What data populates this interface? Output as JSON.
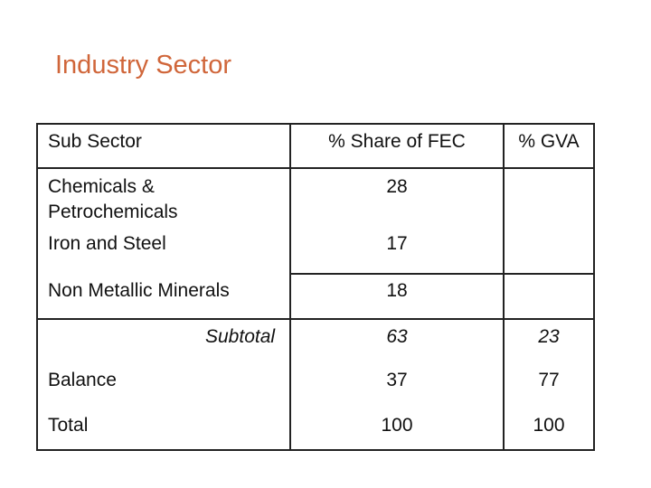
{
  "title": "Industry Sector",
  "table": {
    "headers": {
      "sub_sector": "Sub Sector",
      "share_fec": "% Share of FEC",
      "gva": "% GVA"
    },
    "rows": [
      {
        "label": "Chemicals &",
        "label2": "Petrochemicals",
        "fec": "28",
        "gva": ""
      },
      {
        "label": "Iron and Steel",
        "fec": "17",
        "gva": ""
      },
      {
        "label": "Non Metallic Minerals",
        "fec": "18",
        "gva": ""
      },
      {
        "label": "Subtotal",
        "fec": "63",
        "gva": "23"
      },
      {
        "label": "Balance",
        "fec": "37",
        "gva": "77"
      },
      {
        "label": "Total",
        "fec": "100",
        "gva": "100"
      }
    ]
  }
}
